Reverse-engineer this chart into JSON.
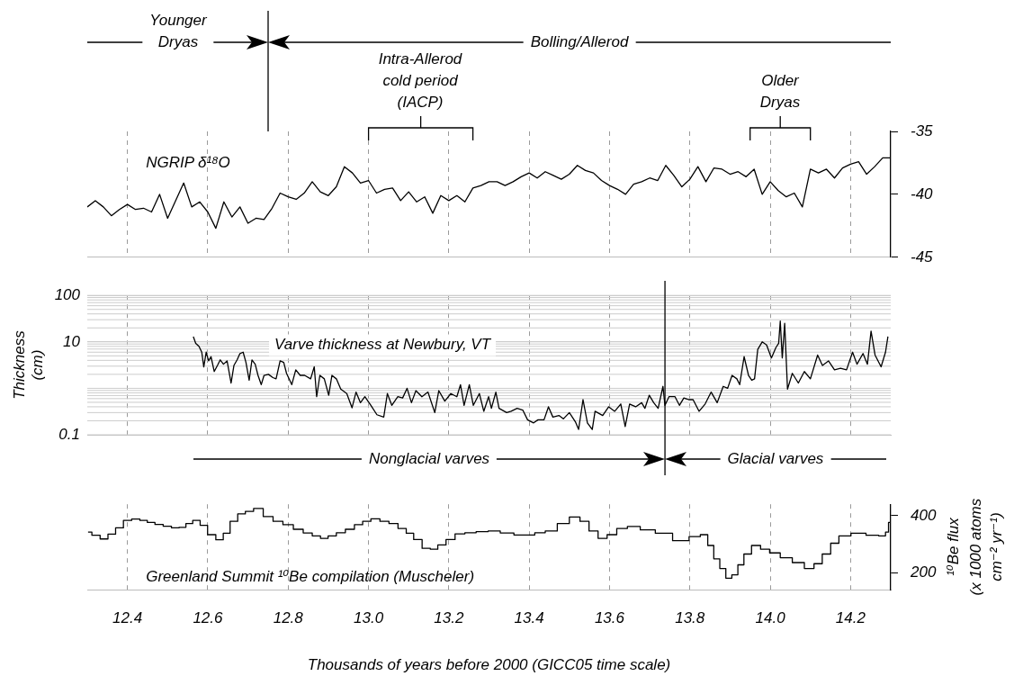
{
  "chart_data": [
    {
      "type": "line",
      "xlim": [
        12.3,
        14.3
      ],
      "ylim": [
        -45,
        -35
      ],
      "yticks": [
        -45,
        -40,
        -35
      ],
      "grid": "x",
      "tick_labels": "y",
      "series": [
        {
          "name": "NGRIP δ¹⁸O",
          "color": "#000000",
          "x": [
            12.3,
            12.32,
            12.34,
            12.36,
            12.38,
            12.4,
            12.42,
            12.44,
            12.46,
            12.48,
            12.5,
            12.54,
            12.56,
            12.58,
            12.6,
            12.62,
            12.64,
            12.66,
            12.68,
            12.7,
            12.72,
            12.74,
            12.76,
            12.78,
            12.8,
            12.82,
            12.84,
            12.86,
            12.88,
            12.9,
            12.92,
            12.94,
            12.96,
            12.98,
            13.0,
            13.02,
            13.04,
            13.06,
            13.08,
            13.1,
            13.12,
            13.14,
            13.16,
            13.18,
            13.2,
            13.22,
            13.24,
            13.26,
            13.28,
            13.3,
            13.32,
            13.34,
            13.36,
            13.38,
            13.4,
            13.42,
            13.44,
            13.46,
            13.48,
            13.5,
            13.52,
            13.54,
            13.56,
            13.58,
            13.6,
            13.62,
            13.64,
            13.66,
            13.68,
            13.7,
            13.72,
            13.74,
            13.76,
            13.78,
            13.8,
            13.82,
            13.84,
            13.86,
            13.88,
            13.9,
            13.92,
            13.94,
            13.96,
            13.98,
            14.0,
            14.02,
            14.04,
            14.06,
            14.08,
            14.1,
            14.12,
            14.14,
            14.16,
            14.18,
            14.2,
            14.22,
            14.24,
            14.26,
            14.28,
            14.3
          ],
          "values": [
            -41.0,
            -40.5,
            -41.0,
            -41.7,
            -41.2,
            -40.8,
            -41.2,
            -41.1,
            -41.4,
            -40.0,
            -41.9,
            -39.1,
            -41.0,
            -40.6,
            -41.4,
            -42.7,
            -40.6,
            -41.8,
            -41.0,
            -42.3,
            -41.9,
            -42.0,
            -41.1,
            -39.9,
            -40.2,
            -40.4,
            -39.9,
            -39.0,
            -39.8,
            -40.1,
            -39.4,
            -37.8,
            -38.3,
            -39.1,
            -38.9,
            -39.9,
            -39.6,
            -39.5,
            -40.5,
            -39.8,
            -40.6,
            -40.2,
            -41.5,
            -40.1,
            -40.5,
            -40.1,
            -40.6,
            -39.5,
            -39.3,
            -39.0,
            -39.0,
            -39.3,
            -39.0,
            -38.6,
            -38.3,
            -38.7,
            -38.2,
            -38.5,
            -38.8,
            -38.4,
            -37.7,
            -38.1,
            -38.3,
            -38.9,
            -39.3,
            -39.6,
            -40.0,
            -39.2,
            -39.0,
            -38.7,
            -38.9,
            -37.7,
            -38.5,
            -39.4,
            -38.8,
            -37.8,
            -39.0,
            -37.9,
            -38.0,
            -38.4,
            -38.2,
            -38.6,
            -38.0,
            -40.0,
            -39.0,
            -39.7,
            -40.2,
            -39.9,
            -41.0,
            -38.0,
            -38.3,
            -38.0,
            -38.7,
            -37.9,
            -37.6,
            -37.4,
            -38.4,
            -37.8,
            -37.1,
            -37.1
          ]
        }
      ],
      "annotations": [
        "Younger\nDryas",
        "Bolling/Allerod",
        "Intra-Allerod\ncold period\n(IACP)",
        "Older\nDryas"
      ]
    },
    {
      "type": "line",
      "xlim": [
        12.3,
        14.3
      ],
      "ylim": [
        0.1,
        100
      ],
      "yticks": [
        0.1,
        10,
        100
      ],
      "log": true,
      "grid": true,
      "tick_labels": "y",
      "ylabel": "Thickness\n(cm)",
      "series": [
        {
          "name": "Varve thickness at Newbury, VT",
          "color": "#000000",
          "x": [
            12.564,
            12.57,
            12.578,
            12.585,
            12.59,
            12.596,
            12.602,
            12.608,
            12.616,
            12.624,
            12.631,
            12.639,
            12.648,
            12.658,
            12.665,
            12.673,
            12.68,
            12.688,
            12.695,
            12.703,
            12.71,
            12.718,
            12.725,
            12.733,
            12.74,
            12.751,
            12.762,
            12.77,
            12.78,
            12.789,
            12.796,
            12.809,
            12.819,
            12.83,
            12.841,
            12.856,
            12.865,
            12.871,
            12.879,
            12.89,
            12.901,
            12.909,
            12.92,
            12.931,
            12.946,
            12.959,
            12.969,
            12.98,
            12.991,
            13.006,
            13.021,
            13.038,
            13.047,
            13.058,
            13.073,
            13.085,
            13.096,
            13.107,
            13.118,
            13.133,
            13.148,
            13.165,
            13.175,
            13.19,
            13.205,
            13.22,
            13.229,
            13.238,
            13.251,
            13.261,
            13.276,
            13.287,
            13.299,
            13.306,
            13.317,
            13.325,
            13.344,
            13.355,
            13.37,
            13.384,
            13.396,
            13.411,
            13.422,
            13.437,
            13.448,
            13.459,
            13.474,
            13.485,
            13.5,
            13.515,
            13.523,
            13.534,
            13.545,
            13.557,
            13.564,
            13.583,
            13.598,
            13.613,
            13.628,
            13.639,
            13.65,
            13.665,
            13.68,
            13.688,
            13.699,
            13.71,
            13.721,
            13.733,
            13.738,
            13.748,
            13.763,
            13.774,
            13.785,
            13.797,
            13.808,
            13.823,
            13.838,
            13.853,
            13.868,
            13.883,
            13.894,
            13.905,
            13.917,
            13.924,
            13.935,
            13.946,
            13.954,
            13.961,
            13.969,
            13.98,
            13.991,
            14.003,
            14.014,
            14.021,
            14.025,
            14.03,
            14.036,
            14.043,
            14.055,
            14.07,
            14.085,
            14.1,
            14.118,
            14.13,
            14.145,
            14.16,
            14.175,
            14.19,
            14.205,
            14.216,
            14.231,
            14.242,
            14.251,
            14.261,
            14.276,
            14.287,
            14.293
          ],
          "values": [
            13,
            9.3,
            8.0,
            6.0,
            2.9,
            6.0,
            3.9,
            4.8,
            2.3,
            3.1,
            4.1,
            3.3,
            3.9,
            1.3,
            3.1,
            4.1,
            5.6,
            6.0,
            3.6,
            1.5,
            4.1,
            3.3,
            1.9,
            1.2,
            1.9,
            2.0,
            1.7,
            1.6,
            3.9,
            3.6,
            2.1,
            1.2,
            2.5,
            1.9,
            1.9,
            1.6,
            2.9,
            0.66,
            1.9,
            1.6,
            0.71,
            1.9,
            1.6,
            0.96,
            0.77,
            0.38,
            0.83,
            0.49,
            0.66,
            0.43,
            0.27,
            0.24,
            0.77,
            0.43,
            0.66,
            0.62,
            1.0,
            0.49,
            0.89,
            0.66,
            0.83,
            0.3,
            0.89,
            0.53,
            0.77,
            0.66,
            1.2,
            0.43,
            1.2,
            0.43,
            0.77,
            0.32,
            0.66,
            0.37,
            0.83,
            0.37,
            0.3,
            0.32,
            0.37,
            0.34,
            0.21,
            0.18,
            0.21,
            0.21,
            0.4,
            0.24,
            0.26,
            0.22,
            0.3,
            0.19,
            0.13,
            0.57,
            0.18,
            0.13,
            0.32,
            0.26,
            0.4,
            0.32,
            0.46,
            0.15,
            0.46,
            0.4,
            0.49,
            0.37,
            0.71,
            0.49,
            0.37,
            1.1,
            0.43,
            0.66,
            0.66,
            0.43,
            0.62,
            0.57,
            0.57,
            0.32,
            0.46,
            0.83,
            0.49,
            1.1,
            1.0,
            1.9,
            1.6,
            1.2,
            4.8,
            1.9,
            1.5,
            1.6,
            6.9,
            10,
            8.6,
            4.5,
            7.5,
            9.3,
            28,
            4.5,
            25,
            0.96,
            2.1,
            1.3,
            2.3,
            1.6,
            5.2,
            3.1,
            3.9,
            2.5,
            2.7,
            2.5,
            6.0,
            3.3,
            5.6,
            3.3,
            17,
            5.2,
            2.9,
            6.0,
            13
          ]
        }
      ],
      "ref_lines": [
        {
          "axis": "x",
          "value": 13.738
        }
      ],
      "annotations": [
        "Nonglacial varves",
        "Glacial varves"
      ]
    },
    {
      "type": "step",
      "xlim": [
        12.3,
        14.3
      ],
      "xticks": [
        12.4,
        12.6,
        12.8,
        {
          "value": 13,
          "label": "13.0"
        },
        13.2,
        13.4,
        13.6,
        13.8,
        {
          "value": 14,
          "label": "14.0"
        },
        14.2
      ],
      "ylim": [
        140,
        440
      ],
      "yticks": [
        200,
        400
      ],
      "grid": "x",
      "xlabel": "Thousands of years before 2000 (GICC05 time scale)",
      "ylabel": "¹⁰Be flux\n(x 1000 atoms\ncm⁻² yr⁻¹)",
      "series": [
        {
          "name": "Greenland Summit ¹⁰Be compilation (Muscheler)",
          "color": "#000000",
          "x": [
            12.302,
            12.321,
            12.343,
            12.36,
            12.381,
            12.399,
            12.422,
            12.44,
            12.459,
            12.478,
            12.5,
            12.519,
            12.538,
            12.553,
            12.572,
            12.59,
            12.609,
            12.631,
            12.646,
            12.665,
            12.684,
            12.703,
            12.725,
            12.751,
            12.774,
            12.8,
            12.826,
            12.849,
            12.871,
            12.89,
            12.909,
            12.931,
            12.954,
            12.976,
            12.995,
            13.017,
            13.04,
            13.062,
            13.085,
            13.103,
            13.122,
            13.145,
            13.163,
            13.182,
            13.204,
            13.227,
            13.253,
            13.283,
            13.313,
            13.343,
            13.381,
            13.403,
            13.425,
            13.455,
            13.485,
            13.515,
            13.538,
            13.56,
            13.583,
            13.605,
            13.631,
            13.658,
            13.695,
            13.733,
            13.781,
            13.815,
            13.837,
            13.852,
            13.867,
            13.882,
            13.897,
            13.912,
            13.927,
            13.942,
            13.965,
            13.987,
            14.01,
            14.04,
            14.07,
            14.1,
            14.118,
            14.141,
            14.16,
            14.182,
            14.22,
            14.257,
            14.283,
            14.291,
            14.298
          ],
          "values": [
            342,
            331,
            318,
            335,
            357,
            383,
            388,
            383,
            376,
            369,
            363,
            357,
            359,
            372,
            383,
            366,
            333,
            315,
            338,
            380,
            406,
            415,
            425,
            397,
            380,
            368,
            352,
            339,
            329,
            320,
            329,
            340,
            352,
            368,
            380,
            389,
            380,
            372,
            355,
            338,
            316,
            285,
            282,
            297,
            316,
            336,
            340,
            344,
            346,
            339,
            332,
            332,
            340,
            346,
            372,
            395,
            380,
            346,
            320,
            333,
            355,
            362,
            350,
            338,
            312,
            326,
            333,
            295,
            248,
            214,
            180,
            192,
            227,
            265,
            295,
            282,
            269,
            252,
            235,
            214,
            231,
            265,
            303,
            329,
            338,
            331,
            329,
            342,
            376
          ]
        }
      ]
    }
  ]
}
